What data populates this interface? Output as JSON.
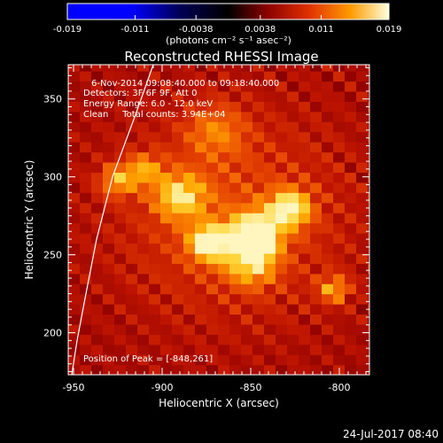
{
  "colorbar": {
    "tick_labels": [
      "-0.019",
      "-0.011",
      "-0.0038",
      "0.0038",
      "0.011",
      "0.019"
    ],
    "ticks": [
      -0.019,
      -0.011,
      -0.0038,
      0.0038,
      0.011,
      0.019
    ],
    "range": [
      -0.019,
      0.019
    ],
    "unit_label": "(photons cm⁻² s⁻¹ asec⁻²)"
  },
  "info": {
    "time_range": "6-Nov-2014 09:08:40.000 to 09:18:40.000",
    "detectors": "Detectors: 3F 6F 9F, Att 0",
    "energy": "Energy Range: 6.0 - 12.0 keV",
    "clean": "Clean     Total counts: 3.94E+04",
    "peak": "Position of Peak = [-848,261]"
  },
  "footer": {
    "date": "24-Jul-2017 08:40"
  },
  "colors": {
    "background": "#000000",
    "limb": "#ffffff",
    "text": "#ffffff"
  },
  "chart_data": {
    "type": "heatmap",
    "title": "Reconstructed RHESSI Image",
    "xlabel": "Heliocentric X (arcsec)",
    "ylabel": "Heliocentric Y (arcsec)",
    "xlim": [
      -953,
      -783
    ],
    "ylim": [
      173,
      372
    ],
    "x_ticks": [
      -950,
      -900,
      -850,
      -800
    ],
    "y_ticks": [
      200,
      250,
      300,
      350
    ],
    "x_tick_labels": [
      "-950",
      "-900",
      "-850",
      "-800"
    ],
    "y_tick_labels": [
      "200",
      "250",
      "300",
      "350"
    ],
    "peak": {
      "x": -848,
      "y": 261
    },
    "sources": [
      {
        "x": -848,
        "y": 263,
        "amplitude": 1.0,
        "sigma": 9
      },
      {
        "x": -873,
        "y": 258,
        "amplitude": 0.72,
        "sigma": 8
      },
      {
        "x": -828,
        "y": 280,
        "amplitude": 0.72,
        "sigma": 8
      },
      {
        "x": -890,
        "y": 288,
        "amplitude": 0.55,
        "sigma": 10
      },
      {
        "x": -925,
        "y": 298,
        "amplitude": 0.45,
        "sigma": 7
      },
      {
        "x": -910,
        "y": 305,
        "amplitude": 0.4,
        "sigma": 7
      },
      {
        "x": -850,
        "y": 245,
        "amplitude": 0.5,
        "sigma": 10
      },
      {
        "x": -803,
        "y": 228,
        "amplitude": 0.45,
        "sigma": 6
      },
      {
        "x": -870,
        "y": 330,
        "amplitude": 0.3,
        "sigma": 12
      }
    ],
    "limb": [
      [
        -905,
        372
      ],
      [
        -915,
        340
      ],
      [
        -928,
        300
      ],
      [
        -937,
        260
      ],
      [
        -943,
        225
      ],
      [
        -948,
        195
      ],
      [
        -951,
        173
      ]
    ],
    "colormap": "red-temperature"
  }
}
